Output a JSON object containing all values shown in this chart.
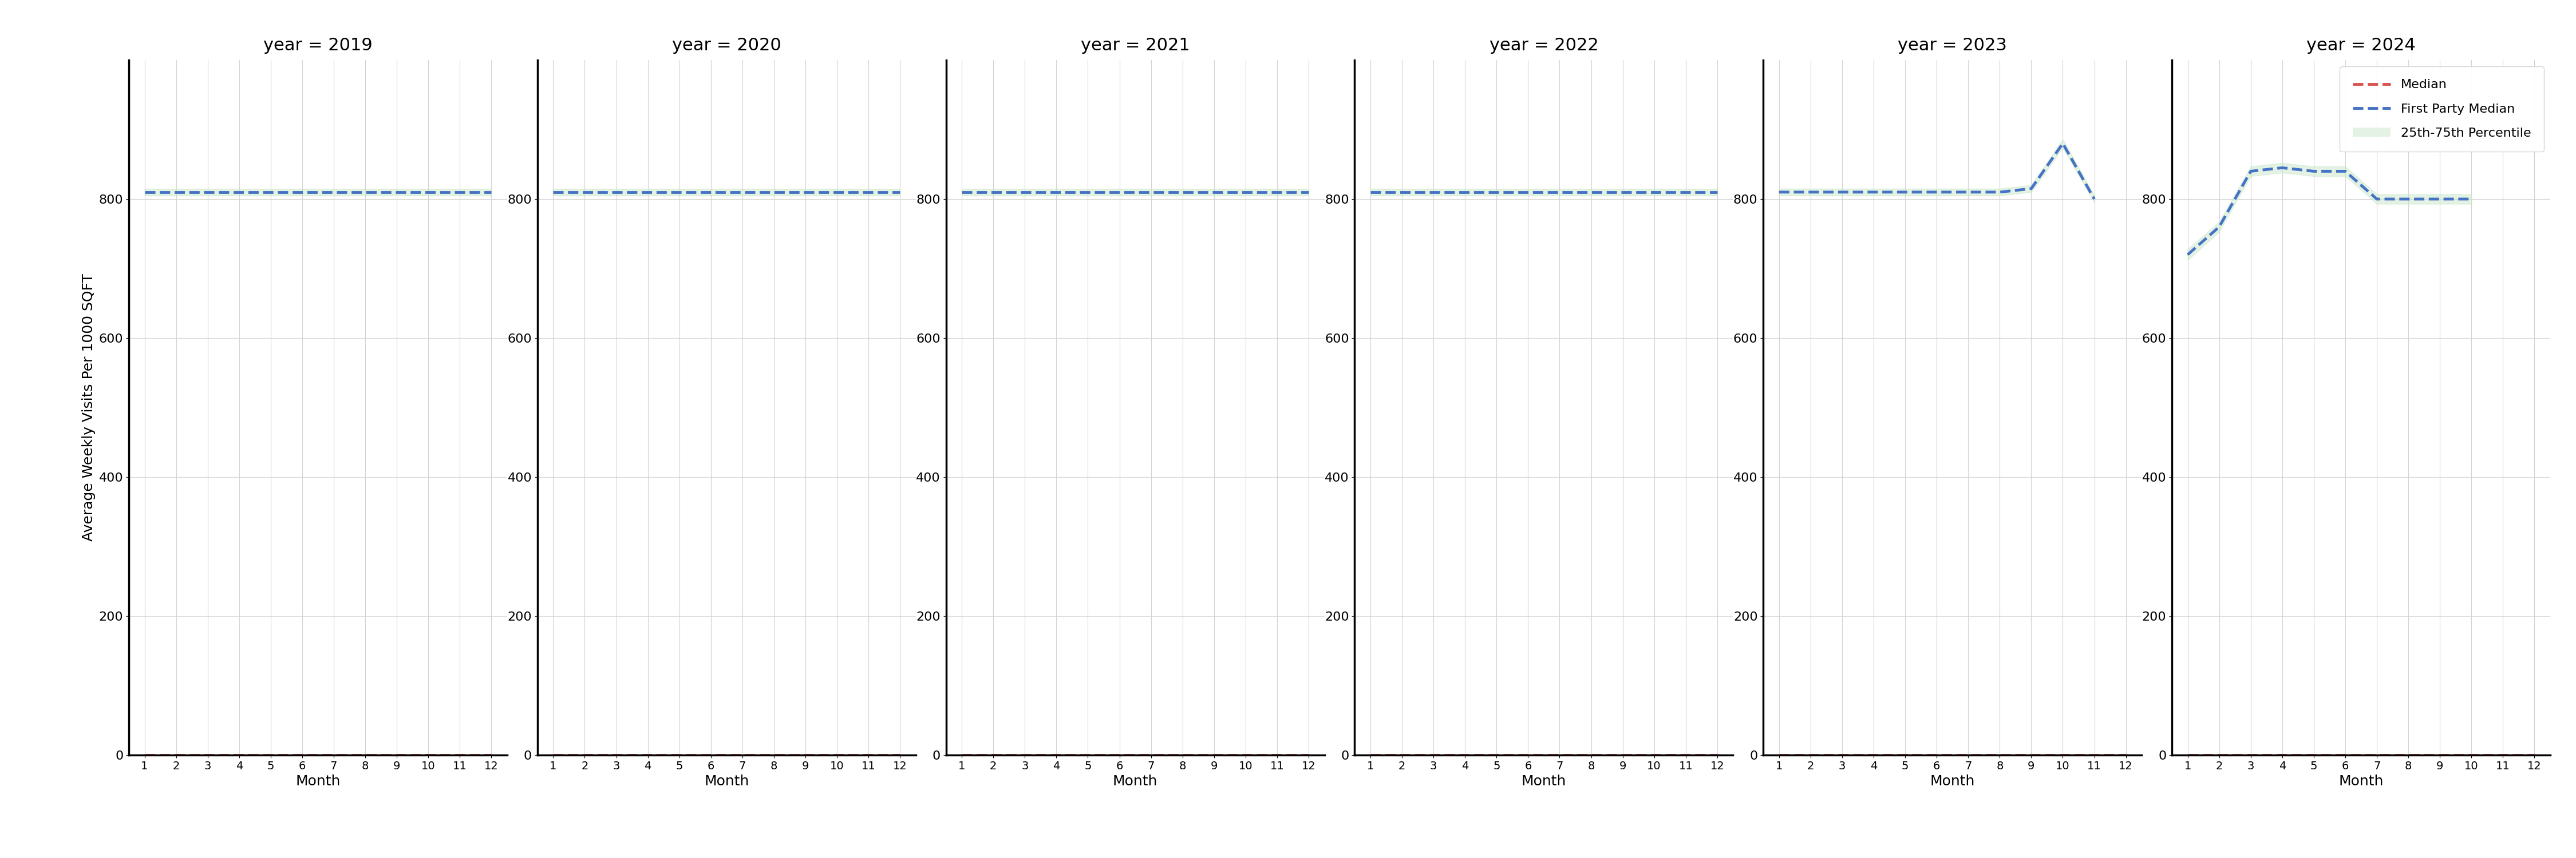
{
  "years": [
    2019,
    2020,
    2021,
    2022,
    2023,
    2024
  ],
  "months": [
    1,
    2,
    3,
    4,
    5,
    6,
    7,
    8,
    9,
    10,
    11,
    12
  ],
  "first_party_median": {
    "2019": [
      810,
      810,
      810,
      810,
      810,
      810,
      810,
      810,
      810,
      810,
      810,
      810
    ],
    "2020": [
      810,
      810,
      810,
      810,
      810,
      810,
      810,
      810,
      810,
      810,
      810,
      810
    ],
    "2021": [
      810,
      810,
      810,
      810,
      810,
      810,
      810,
      810,
      810,
      810,
      810,
      810
    ],
    "2022": [
      810,
      810,
      810,
      810,
      810,
      810,
      810,
      810,
      810,
      810,
      810,
      810
    ],
    "2023": [
      810,
      810,
      810,
      810,
      810,
      810,
      810,
      810,
      815,
      880,
      800,
      null
    ],
    "2024": [
      720,
      760,
      840,
      845,
      840,
      840,
      800,
      800,
      800,
      800,
      null,
      null
    ]
  },
  "percentile_25": {
    "2019": [
      805,
      805,
      805,
      805,
      805,
      805,
      805,
      805,
      805,
      805,
      805,
      805
    ],
    "2020": [
      805,
      805,
      805,
      805,
      805,
      805,
      805,
      805,
      805,
      805,
      805,
      805
    ],
    "2021": [
      805,
      805,
      805,
      805,
      805,
      805,
      805,
      805,
      805,
      805,
      805,
      805
    ],
    "2022": [
      805,
      805,
      805,
      805,
      805,
      805,
      805,
      805,
      805,
      805,
      805,
      805
    ],
    "2023": [
      805,
      805,
      805,
      805,
      805,
      805,
      805,
      805,
      810,
      874,
      795,
      null
    ],
    "2024": [
      712,
      753,
      833,
      838,
      833,
      833,
      793,
      793,
      793,
      793,
      null,
      null
    ]
  },
  "percentile_75": {
    "2019": [
      815,
      815,
      815,
      815,
      815,
      815,
      815,
      815,
      815,
      815,
      815,
      815
    ],
    "2020": [
      815,
      815,
      815,
      815,
      815,
      815,
      815,
      815,
      815,
      815,
      815,
      815
    ],
    "2021": [
      815,
      815,
      815,
      815,
      815,
      815,
      815,
      815,
      815,
      815,
      815,
      815
    ],
    "2022": [
      815,
      815,
      815,
      815,
      815,
      815,
      815,
      815,
      815,
      815,
      815,
      815
    ],
    "2023": [
      815,
      815,
      815,
      815,
      815,
      815,
      815,
      815,
      820,
      886,
      805,
      null
    ],
    "2024": [
      728,
      767,
      847,
      852,
      847,
      847,
      807,
      807,
      807,
      807,
      null,
      null
    ]
  },
  "median_line_value": 0,
  "ylim": [
    0,
    1000
  ],
  "yticks": [
    0,
    200,
    400,
    600,
    800
  ],
  "median_color": "#d9534f",
  "first_party_color": "#4472c4",
  "percentile_color": "#c8e6c9",
  "ylabel": "Average Weekly Visits Per 1000 SQFT",
  "xlabel": "Month",
  "title_prefix": "year = ",
  "legend_labels": [
    "Median",
    "First Party Median",
    "25th-75th Percentile"
  ]
}
